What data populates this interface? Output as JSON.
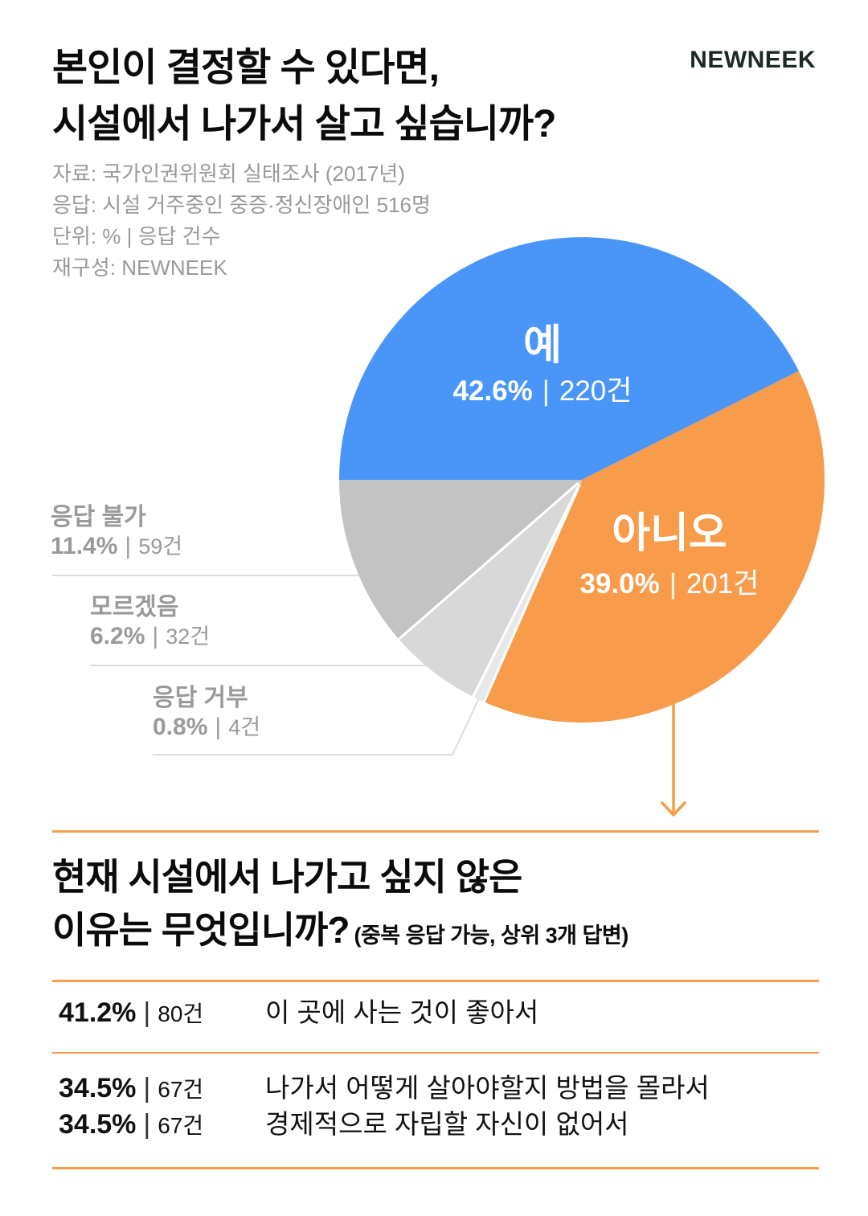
{
  "page": {
    "bg": "#ffffff",
    "accent": "#f89c4c"
  },
  "divider": "|",
  "unit_suffix": "건",
  "header": {
    "logo": "NEWNEEK",
    "title_lines": [
      "본인이 결정할 수 있다면,",
      "시설에서 나가서 살고 싶습니까?"
    ],
    "meta_lines": [
      "자료: 국가인권위원회 실태조사 (2017년)",
      "응답: 시설 거주중인 중증·정신장애인 516명",
      "단위: % | 응답 건수",
      "재구성: NEWNEEK"
    ]
  },
  "chart_data": [
    {
      "type": "pie",
      "title": "본인이 결정할 수 있다면, 시설에서 나가서 살고 싶습니까?",
      "unit": "% | 응답 건수",
      "start_angle": "west",
      "direction": "clockwise",
      "slices": [
        {
          "key": "yes",
          "label": "예",
          "pct": 42.6,
          "count": 220,
          "color": "#4a96f8"
        },
        {
          "key": "no",
          "label": "아니오",
          "pct": 39.0,
          "count": 201,
          "color": "#f89c4c"
        },
        {
          "key": "response-refused",
          "label": "응답 거부",
          "pct": 0.8,
          "count": 4,
          "color": "#e8e8e8"
        },
        {
          "key": "dont-know",
          "label": "모르겠음",
          "pct": 6.2,
          "count": 32,
          "color": "#d8d8d8"
        },
        {
          "key": "response-unavailable",
          "label": "응답 불가",
          "pct": 11.4,
          "count": 59,
          "color": "#c3c3c3"
        }
      ]
    },
    {
      "type": "table",
      "question_lines": [
        "현재 시설에서 나가고 싶지 않은",
        "이유는 무엇입니까?"
      ],
      "note": "(중복 응답 가능, 상위 3개 답변)",
      "rows": [
        {
          "pct": 41.2,
          "count": 80,
          "reason": "이 곳에 사는 것이 좋아서"
        },
        {
          "pct": 34.5,
          "count": 67,
          "reason": "나가서 어떻게 살아야할지 방법을 몰라서"
        },
        {
          "pct": 34.5,
          "count": 67,
          "reason": "경제적으로 자립할 자신이 없어서"
        }
      ]
    }
  ]
}
